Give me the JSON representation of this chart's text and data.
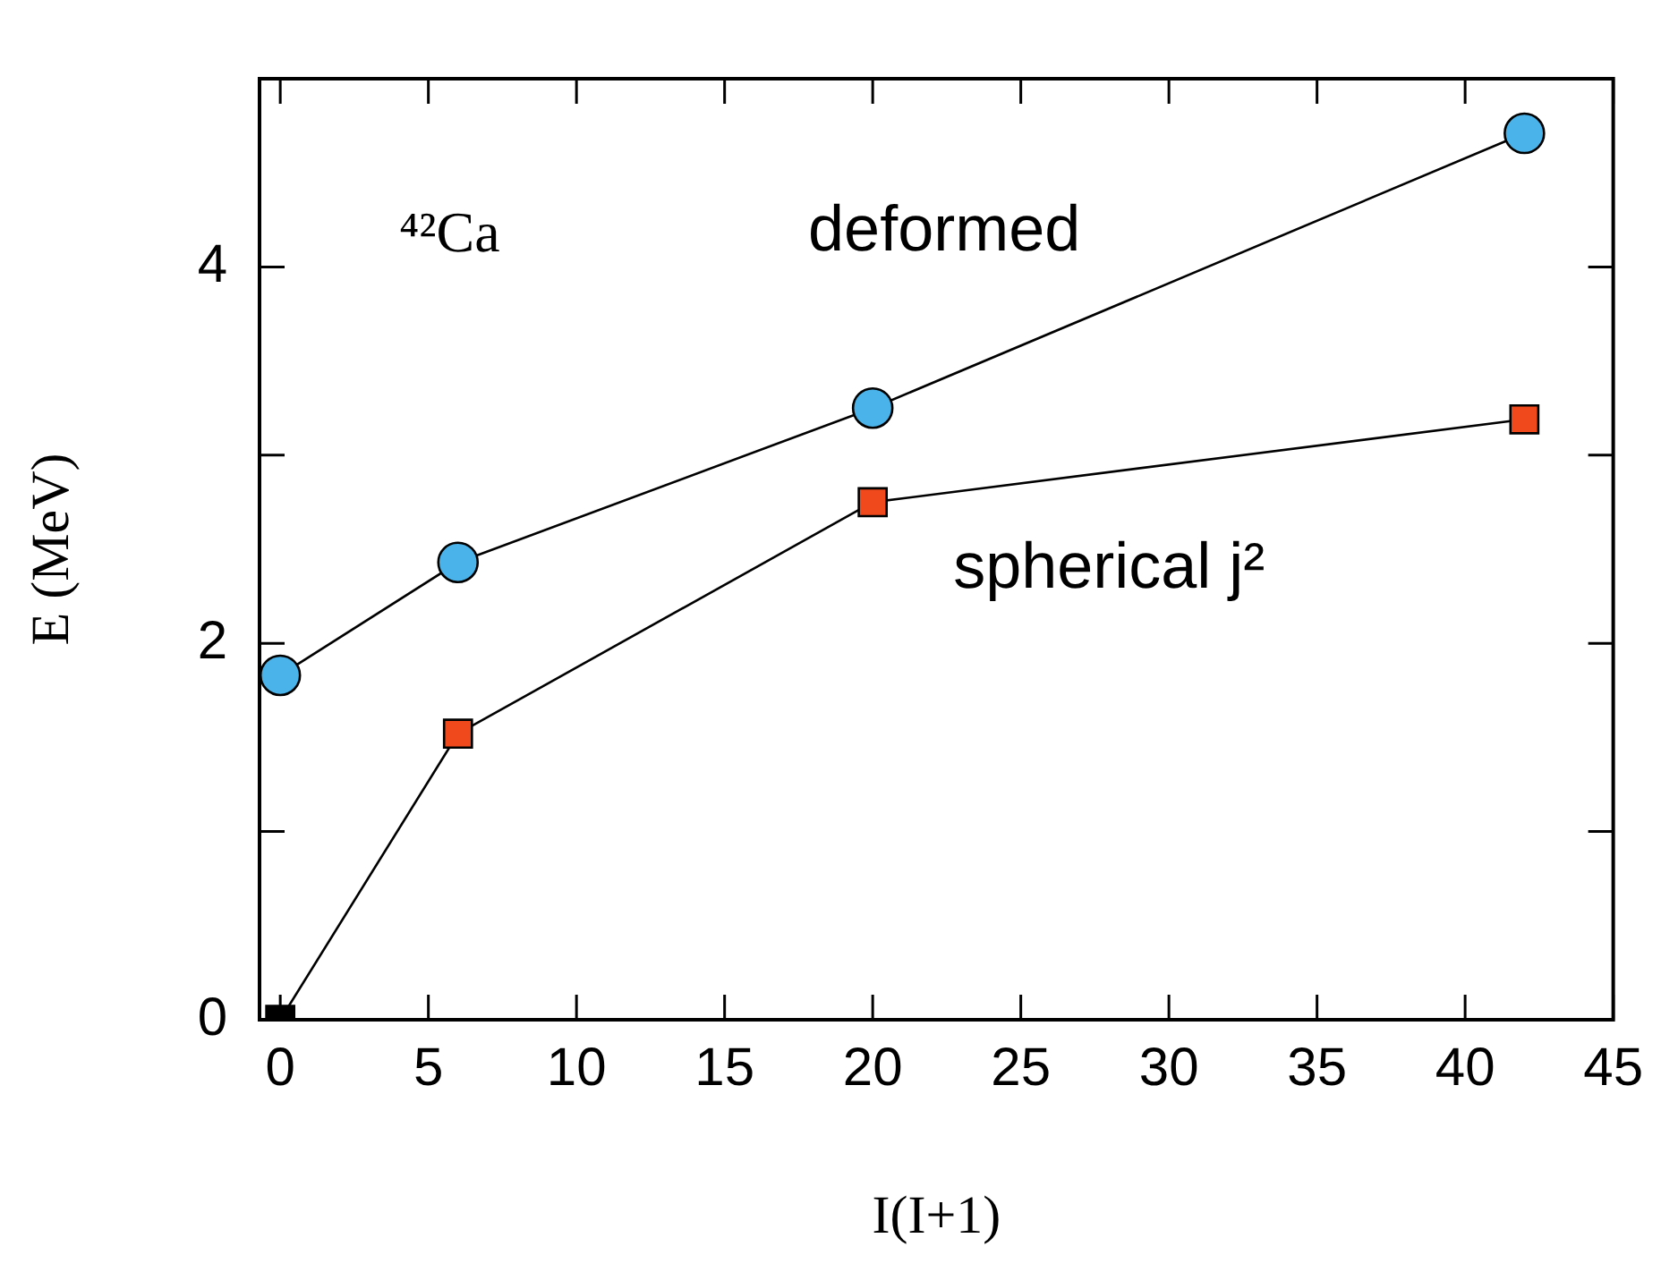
{
  "chart_data": {
    "type": "line",
    "xlabel": "I(I+1)",
    "ylabel": "E (MeV)",
    "annotations": [
      "⁴²Ca"
    ],
    "x": [
      0,
      6,
      20,
      42
    ],
    "series": [
      {
        "name": "deformed",
        "color": "#4ab4ea",
        "marker": "circle",
        "values": [
          1.83,
          2.43,
          3.25,
          4.71
        ]
      },
      {
        "name": "spherical j²",
        "color": "#f04a1c",
        "colors": [
          "#000000",
          null,
          null,
          null
        ],
        "marker": "square",
        "values": [
          0,
          1.52,
          2.75,
          3.19
        ]
      }
    ],
    "xlim": [
      -0.7,
      45
    ],
    "xticks": [
      0,
      5,
      10,
      15,
      20,
      25,
      30,
      35,
      40,
      45
    ],
    "ylim": [
      0,
      5
    ],
    "yticks": [
      0,
      {
        "value": 1,
        "label": null
      },
      2,
      {
        "value": 3,
        "label": null
      },
      4
    ],
    "grid": false,
    "legend": false
  }
}
